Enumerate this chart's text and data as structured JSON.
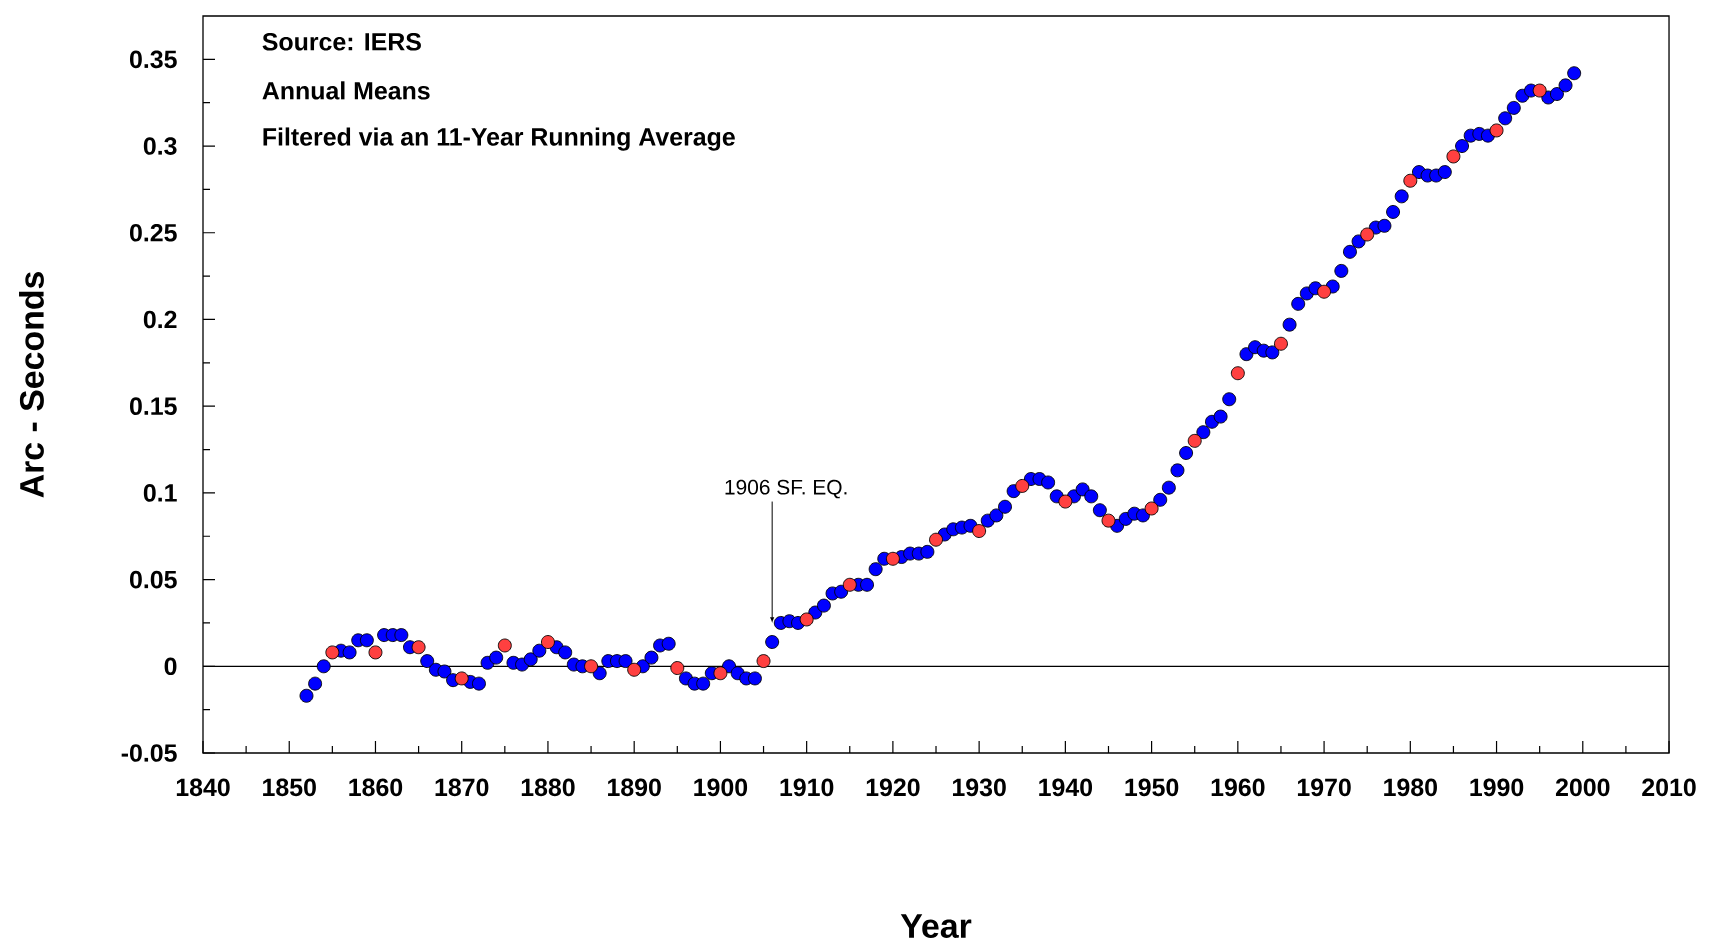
{
  "chart_data": {
    "type": "scatter",
    "xlabel": "Year",
    "ylabel": "Arc - Seconds",
    "annotations": [
      "Source: IERS",
      "Annual Means",
      "Filtered via an 11-Year Running Average",
      {
        "text": "1906 SF. EQ.",
        "x": 1906,
        "y": 0.025
      }
    ],
    "xlim": [
      1840,
      2010
    ],
    "xticks": [
      1840,
      1850,
      1860,
      1870,
      1880,
      1890,
      1900,
      1910,
      1920,
      1930,
      1940,
      1950,
      1960,
      1970,
      1980,
      1990,
      2000,
      2010
    ],
    "ylim": [
      -0.05,
      0.375
    ],
    "yticks": [
      -0.05,
      0,
      0.05,
      0.1,
      0.15,
      0.2,
      0.25,
      0.3,
      0.35
    ],
    "marker": "circle",
    "ref_lines": [
      {
        "axis": "y",
        "value": 0,
        "color": "#000000"
      }
    ],
    "series": [
      {
        "color": "#0000ff",
        "x": [
          1852,
          1853,
          1854,
          1856,
          1857,
          1858,
          1859,
          1861,
          1862,
          1863,
          1864,
          1866,
          1867,
          1868,
          1869,
          1871,
          1872,
          1873,
          1874,
          1876,
          1877,
          1878,
          1879,
          1881,
          1882,
          1883,
          1884,
          1886,
          1887,
          1888,
          1889,
          1891,
          1892,
          1893,
          1894,
          1896,
          1897,
          1898,
          1899,
          1901,
          1902,
          1903,
          1904,
          1906,
          1907,
          1908,
          1909,
          1911,
          1912,
          1913,
          1914,
          1916,
          1917,
          1918,
          1919,
          1921,
          1922,
          1923,
          1924,
          1926,
          1927,
          1928,
          1929,
          1931,
          1932,
          1933,
          1934,
          1936,
          1937,
          1938,
          1939,
          1941,
          1942,
          1943,
          1944,
          1946,
          1947,
          1948,
          1949,
          1951,
          1952,
          1953,
          1954,
          1956,
          1957,
          1958,
          1959,
          1961,
          1962,
          1963,
          1964,
          1966,
          1967,
          1968,
          1969,
          1971,
          1972,
          1973,
          1974,
          1976,
          1977,
          1978,
          1979,
          1981,
          1982,
          1983,
          1984,
          1986,
          1987,
          1988,
          1989,
          1991,
          1992,
          1993,
          1994,
          1996,
          1997,
          1998,
          1999
        ],
        "values": [
          -0.017,
          -0.01,
          0.0,
          0.009,
          0.008,
          0.015,
          0.015,
          0.018,
          0.018,
          0.018,
          0.011,
          0.003,
          -0.002,
          -0.003,
          -0.008,
          -0.009,
          -0.01,
          0.002,
          0.005,
          0.002,
          0.001,
          0.004,
          0.009,
          0.011,
          0.008,
          0.001,
          0.0,
          -0.004,
          0.003,
          0.003,
          0.003,
          0.0,
          0.005,
          0.012,
          0.013,
          -0.007,
          -0.01,
          -0.01,
          -0.004,
          0.0,
          -0.004,
          -0.007,
          -0.007,
          0.014,
          0.025,
          0.026,
          0.025,
          0.031,
          0.035,
          0.042,
          0.043,
          0.047,
          0.047,
          0.056,
          0.062,
          0.063,
          0.065,
          0.065,
          0.066,
          0.076,
          0.079,
          0.08,
          0.081,
          0.084,
          0.087,
          0.092,
          0.101,
          0.108,
          0.108,
          0.106,
          0.098,
          0.098,
          0.102,
          0.098,
          0.09,
          0.081,
          0.085,
          0.088,
          0.087,
          0.096,
          0.103,
          0.113,
          0.123,
          0.135,
          0.141,
          0.144,
          0.154,
          0.18,
          0.184,
          0.182,
          0.181,
          0.197,
          0.209,
          0.215,
          0.218,
          0.219,
          0.228,
          0.239,
          0.245,
          0.253,
          0.254,
          0.262,
          0.271,
          0.285,
          0.283,
          0.283,
          0.285,
          0.3,
          0.306,
          0.307,
          0.306,
          0.316,
          0.322,
          0.329,
          0.332,
          0.328,
          0.33,
          0.335,
          0.342
        ]
      },
      {
        "color": "#ff4040",
        "x": [
          1855,
          1860,
          1865,
          1870,
          1875,
          1880,
          1885,
          1890,
          1895,
          1900,
          1905,
          1910,
          1915,
          1920,
          1925,
          1930,
          1935,
          1940,
          1945,
          1950,
          1955,
          1960,
          1965,
          1970,
          1975,
          1980,
          1985,
          1990,
          1995
        ],
        "values": [
          0.008,
          0.008,
          0.011,
          -0.007,
          0.012,
          0.014,
          0.0,
          -0.002,
          -0.001,
          -0.004,
          0.003,
          0.027,
          0.047,
          0.062,
          0.073,
          0.078,
          0.104,
          0.095,
          0.084,
          0.091,
          0.13,
          0.169,
          0.186,
          0.216,
          0.249,
          0.28,
          0.294,
          0.309,
          0.332
        ]
      }
    ]
  }
}
